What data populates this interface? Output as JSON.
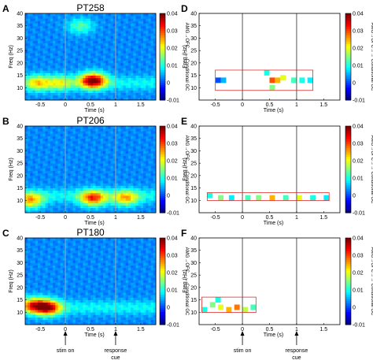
{
  "figure": {
    "panel_letters": [
      "A",
      "B",
      "C",
      "D",
      "E",
      "F"
    ],
    "subjects": [
      "PT258",
      "PT206",
      "PT180"
    ],
    "x_axis_label": "Time (s)",
    "y_axis_label": "Freq (Hz)",
    "colorbar_label": "AMG<sub>LGHG</sub> OFC<sub>LGHG</sub> Conditional GC",
    "colorbar_label_text": "AMG→OFC→→ Conditional GC",
    "colorbar_ticks": [
      "0.04",
      "0.03",
      "0.02",
      "0.01",
      "0",
      "-0.01"
    ],
    "x_ticks": [
      "-0.5",
      "0",
      "0.5",
      "1",
      "1.5"
    ],
    "y_ticks": [
      "10",
      "15",
      "20",
      "25",
      "30",
      "35",
      "40"
    ],
    "events": {
      "stim_on": "stim on",
      "response_cue_line1": "response",
      "response_cue_line2": "cue"
    }
  },
  "chart_data": [
    {
      "panel": "A",
      "subject": "PT258",
      "type": "heatmap",
      "x_range": [
        -0.8,
        1.8
      ],
      "y_range": [
        5,
        40
      ],
      "clim": [
        -0.01,
        0.04
      ],
      "xlabel": "Time (s)",
      "ylabel": "Freq (Hz)",
      "vertical_lines_s": [
        0,
        1
      ],
      "hotspots": [
        {
          "t": 0.55,
          "f": 13,
          "value": 0.035
        },
        {
          "t": -0.55,
          "f": 12,
          "value": 0.015
        },
        {
          "t": -0.1,
          "f": 12,
          "value": 0.012
        },
        {
          "t": 0.3,
          "f": 35,
          "value": 0.01
        }
      ]
    },
    {
      "panel": "B",
      "subject": "PT206",
      "type": "heatmap",
      "x_range": [
        -0.8,
        1.8
      ],
      "y_range": [
        5,
        40
      ],
      "clim": [
        -0.01,
        0.04
      ],
      "xlabel": "Time (s)",
      "ylabel": "Freq (Hz)",
      "vertical_lines_s": [
        0,
        1
      ],
      "hotspots": [
        {
          "t": 0.55,
          "f": 11,
          "value": 0.025
        },
        {
          "t": -0.7,
          "f": 10,
          "value": 0.02
        },
        {
          "t": 1.2,
          "f": 11,
          "value": 0.018
        }
      ]
    },
    {
      "panel": "C",
      "subject": "PT180",
      "type": "heatmap",
      "x_range": [
        -0.8,
        1.8
      ],
      "y_range": [
        5,
        40
      ],
      "clim": [
        -0.01,
        0.04
      ],
      "xlabel": "Time (s)",
      "ylabel": "Freq (Hz)",
      "vertical_lines_s": [
        0,
        1
      ],
      "hotspots": [
        {
          "t": -0.35,
          "f": 12,
          "value": 0.03
        },
        {
          "t": -0.65,
          "f": 13,
          "value": 0.022
        }
      ]
    },
    {
      "panel": "D",
      "subject": "PT258",
      "type": "heatmap",
      "x_range": [
        -0.8,
        1.8
      ],
      "y_range": [
        5,
        40
      ],
      "clim": [
        -0.01,
        0.04
      ],
      "xlabel": "Time (s)",
      "ylabel": "Freq (Hz)",
      "vertical_lines_s": [
        0,
        1
      ],
      "significant_cells": [
        {
          "t": -0.45,
          "f": 13,
          "value": 0.0
        },
        {
          "t": -0.35,
          "f": 13,
          "value": 0.005
        },
        {
          "t": 0.45,
          "f": 16,
          "value": 0.01
        },
        {
          "t": 0.55,
          "f": 13,
          "value": 0.03
        },
        {
          "t": 0.65,
          "f": 13,
          "value": 0.025
        },
        {
          "t": 0.55,
          "f": 10,
          "value": 0.015
        },
        {
          "t": 0.75,
          "f": 14,
          "value": 0.02
        },
        {
          "t": 0.95,
          "f": 13,
          "value": 0.012
        },
        {
          "t": 1.1,
          "f": 13,
          "value": 0.01
        },
        {
          "t": 1.25,
          "f": 13,
          "value": 0.008
        }
      ]
    },
    {
      "panel": "E",
      "subject": "PT206",
      "type": "heatmap",
      "x_range": [
        -0.8,
        1.8
      ],
      "y_range": [
        5,
        40
      ],
      "clim": [
        -0.01,
        0.04
      ],
      "xlabel": "Time (s)",
      "ylabel": "Freq (Hz)",
      "vertical_lines_s": [
        0,
        1
      ],
      "significant_cells": [
        {
          "t": -0.6,
          "f": 12,
          "value": 0.01
        },
        {
          "t": -0.4,
          "f": 11,
          "value": 0.015
        },
        {
          "t": -0.2,
          "f": 11,
          "value": 0.008
        },
        {
          "t": 0.1,
          "f": 11,
          "value": 0.012
        },
        {
          "t": 0.3,
          "f": 11,
          "value": 0.015
        },
        {
          "t": 0.55,
          "f": 11,
          "value": 0.025
        },
        {
          "t": 0.8,
          "f": 11,
          "value": 0.012
        },
        {
          "t": 1.05,
          "f": 11,
          "value": 0.02
        },
        {
          "t": 1.3,
          "f": 11,
          "value": 0.01
        },
        {
          "t": 1.55,
          "f": 11,
          "value": 0.008
        }
      ]
    },
    {
      "panel": "F",
      "subject": "PT180",
      "type": "heatmap",
      "x_range": [
        -0.8,
        1.8
      ],
      "y_range": [
        5,
        40
      ],
      "clim": [
        -0.01,
        0.04
      ],
      "xlabel": "Time (s)",
      "ylabel": "Freq (Hz)",
      "vertical_lines_s": [
        0,
        1
      ],
      "significant_cells": [
        {
          "t": -0.7,
          "f": 11,
          "value": 0.01
        },
        {
          "t": -0.55,
          "f": 13,
          "value": 0.015
        },
        {
          "t": -0.4,
          "f": 12,
          "value": 0.02
        },
        {
          "t": -0.25,
          "f": 11,
          "value": 0.025
        },
        {
          "t": -0.1,
          "f": 12,
          "value": 0.028
        },
        {
          "t": 0.05,
          "f": 11,
          "value": 0.018
        },
        {
          "t": 0.2,
          "f": 12,
          "value": 0.012
        },
        {
          "t": -0.45,
          "f": 15,
          "value": 0.01
        }
      ]
    }
  ]
}
